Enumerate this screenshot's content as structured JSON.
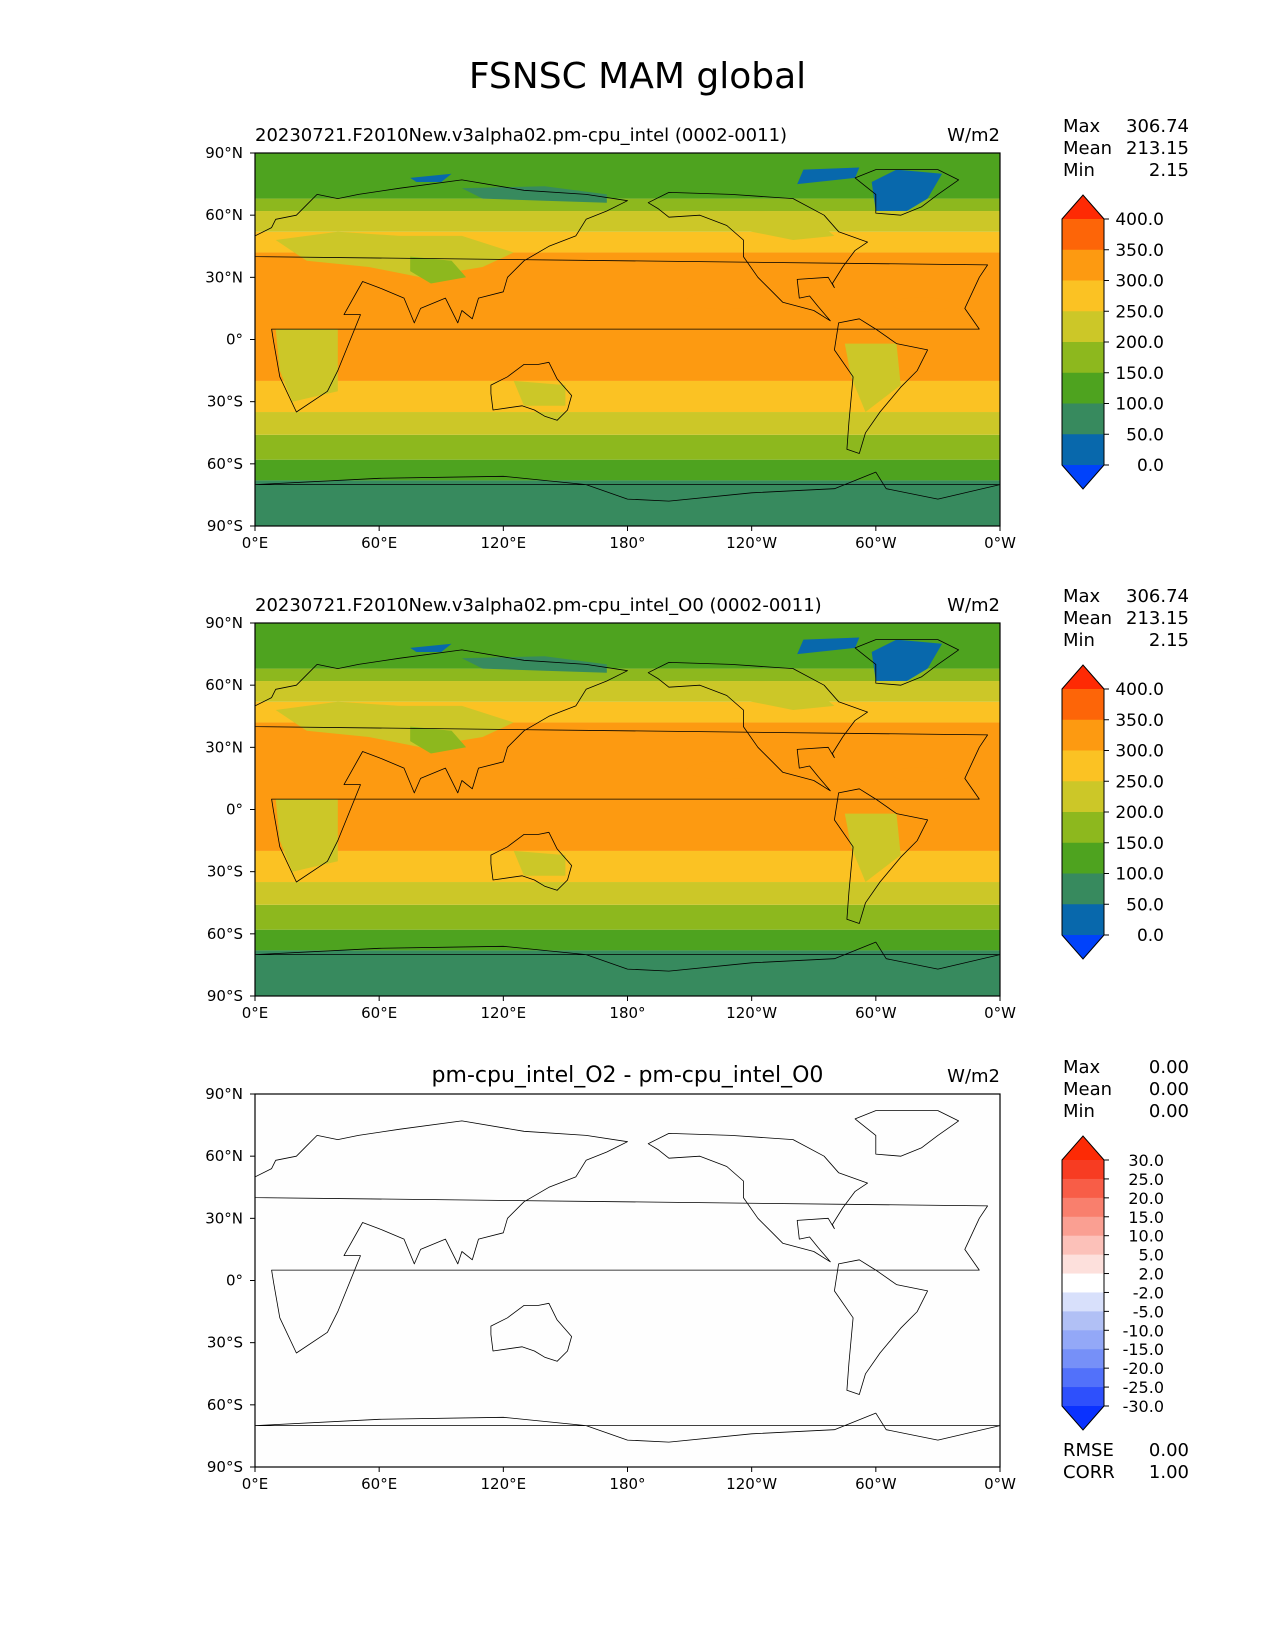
{
  "title": "FSNSC MAM global",
  "colors": {
    "ocean_blue": "#0868ac",
    "polar_green": "#378a5e",
    "mid_green": "#4ea31f",
    "olive": "#8db81e",
    "yellow_green": "#ccc728",
    "yellow": "#fbc223",
    "orange": "#fd9a11"
  },
  "chart_data": [
    {
      "type": "heatmap",
      "panel": "test",
      "left_title": "20230721.F2010New.v3alpha02.pm-cpu_intel (0002-0011)",
      "units": "W/m2",
      "stats": {
        "max_label": "Max",
        "max": "306.74",
        "mean_label": "Mean",
        "mean": "213.15",
        "min_label": "Min",
        "min": "2.15"
      },
      "x_ticks": [
        "0°E",
        "60°E",
        "120°E",
        "180°",
        "120°W",
        "60°W",
        "0°W"
      ],
      "y_ticks": [
        "90°N",
        "60°N",
        "30°N",
        "0°",
        "30°S",
        "60°S",
        "90°S"
      ],
      "xlim": [
        0,
        360
      ],
      "ylim": [
        -90,
        90
      ],
      "colorbar": {
        "levels": [
          "0.0",
          "50.0",
          "100.0",
          "150.0",
          "200.0",
          "250.0",
          "300.0",
          "350.0",
          "400.0"
        ],
        "colors": [
          "#0042fb",
          "#0868ac",
          "#378a5e",
          "#4ea31f",
          "#8db81e",
          "#ccc728",
          "#fbc223",
          "#fd9a11",
          "#fd6508",
          "#fe2a04"
        ],
        "extend": "both"
      },
      "zonal_bands": [
        {
          "lat": [
            -90,
            -68
          ],
          "value": 50
        },
        {
          "lat": [
            -68,
            -58
          ],
          "value": 100
        },
        {
          "lat": [
            -58,
            -46
          ],
          "value": 150
        },
        {
          "lat": [
            -46,
            -35
          ],
          "value": 200
        },
        {
          "lat": [
            -35,
            -20
          ],
          "value": 250
        },
        {
          "lat": [
            -20,
            42
          ],
          "value": 300
        },
        {
          "lat": [
            42,
            52
          ],
          "value": 250
        },
        {
          "lat": [
            52,
            62
          ],
          "value": 200
        },
        {
          "lat": [
            62,
            68
          ],
          "value": 150
        },
        {
          "lat": [
            68,
            90
          ],
          "value": 100
        }
      ]
    },
    {
      "type": "heatmap",
      "panel": "reference",
      "left_title": "20230721.F2010New.v3alpha02.pm-cpu_intel_O0 (0002-0011)",
      "units": "W/m2",
      "stats": {
        "max_label": "Max",
        "max": "306.74",
        "mean_label": "Mean",
        "mean": "213.15",
        "min_label": "Min",
        "min": "2.15"
      },
      "x_ticks": [
        "0°E",
        "60°E",
        "120°E",
        "180°",
        "120°W",
        "60°W",
        "0°W"
      ],
      "y_ticks": [
        "90°N",
        "60°N",
        "30°N",
        "0°",
        "30°S",
        "60°S",
        "90°S"
      ],
      "xlim": [
        0,
        360
      ],
      "ylim": [
        -90,
        90
      ],
      "colorbar": {
        "levels": [
          "0.0",
          "50.0",
          "100.0",
          "150.0",
          "200.0",
          "250.0",
          "300.0",
          "350.0",
          "400.0"
        ],
        "colors": [
          "#0042fb",
          "#0868ac",
          "#378a5e",
          "#4ea31f",
          "#8db81e",
          "#ccc728",
          "#fbc223",
          "#fd9a11",
          "#fd6508",
          "#fe2a04"
        ],
        "extend": "both"
      },
      "zonal_bands": [
        {
          "lat": [
            -90,
            -68
          ],
          "value": 50
        },
        {
          "lat": [
            -68,
            -58
          ],
          "value": 100
        },
        {
          "lat": [
            -58,
            -46
          ],
          "value": 150
        },
        {
          "lat": [
            -46,
            -35
          ],
          "value": 200
        },
        {
          "lat": [
            -35,
            -20
          ],
          "value": 250
        },
        {
          "lat": [
            -20,
            42
          ],
          "value": 300
        },
        {
          "lat": [
            42,
            52
          ],
          "value": 250
        },
        {
          "lat": [
            52,
            62
          ],
          "value": 200
        },
        {
          "lat": [
            62,
            68
          ],
          "value": 150
        },
        {
          "lat": [
            68,
            90
          ],
          "value": 100
        }
      ]
    },
    {
      "type": "heatmap",
      "panel": "difference",
      "center_title": "pm-cpu_intel_O2 - pm-cpu_intel_O0",
      "units": "W/m2",
      "stats": {
        "max_label": "Max",
        "max": "0.00",
        "mean_label": "Mean",
        "mean": "0.00",
        "min_label": "Min",
        "min": "0.00"
      },
      "extra_stats": {
        "rmse_label": "RMSE",
        "rmse": "0.00",
        "corr_label": "CORR",
        "corr": "1.00"
      },
      "x_ticks": [
        "0°E",
        "60°E",
        "120°E",
        "180°",
        "120°W",
        "60°W",
        "0°W"
      ],
      "y_ticks": [
        "90°N",
        "60°N",
        "30°N",
        "0°",
        "30°S",
        "60°S",
        "90°S"
      ],
      "xlim": [
        0,
        360
      ],
      "ylim": [
        -90,
        90
      ],
      "colorbar": {
        "levels": [
          "-30.0",
          "-25.0",
          "-20.0",
          "-15.0",
          "-10.0",
          "-5.0",
          "-2.0",
          "2.0",
          "5.0",
          "10.0",
          "15.0",
          "20.0",
          "25.0",
          "30.0"
        ],
        "colors": [
          "#0a32ff",
          "#2e50fc",
          "#5271fa",
          "#7690f8",
          "#93a8f7",
          "#b1c0f5",
          "#d8e0fb",
          "#ffffff",
          "#fde0dc",
          "#fcc1b9",
          "#fa9f92",
          "#f97f6d",
          "#f85d47",
          "#f73c22",
          "#fd2a05"
        ],
        "extend": "both"
      }
    }
  ]
}
